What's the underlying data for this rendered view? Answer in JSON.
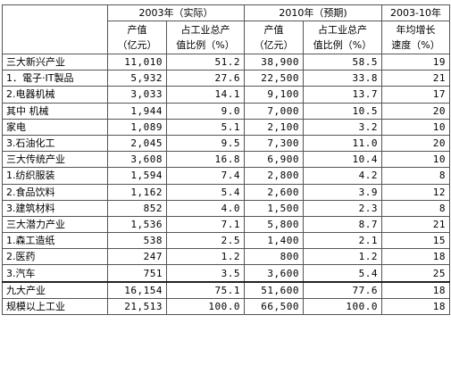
{
  "header": {
    "groups": [
      {
        "label": "2003年（实际）"
      },
      {
        "label": "2010年（预期)"
      },
      {
        "label": "2003-10年"
      }
    ],
    "columns": [
      [
        "产值",
        "（亿元）"
      ],
      [
        "占工业总产",
        "值比例（%）"
      ],
      [
        "产值",
        "（亿元）"
      ],
      [
        "占工业总产",
        "值比例（%）"
      ],
      [
        "年均增长",
        "速度（%）"
      ]
    ]
  },
  "rows": [
    {
      "label": "三大新兴产业",
      "indent": 0,
      "values": [
        "11,010",
        "51.2",
        "38,900",
        "58.5",
        "19"
      ]
    },
    {
      "label": "1．電子·IT製品",
      "indent": 1,
      "values": [
        "5,932",
        "27.6",
        "22,500",
        "33.8",
        "21"
      ]
    },
    {
      "label": "2.电器机械",
      "indent": 2,
      "values": [
        "3,033",
        "14.1",
        "9,100",
        "13.7",
        "17"
      ]
    },
    {
      "label": "其中  机械",
      "indent": 1,
      "values": [
        "1,944",
        "9.0",
        "7,000",
        "10.5",
        "20"
      ]
    },
    {
      "label": "家电",
      "indent": 3,
      "values": [
        "1,089",
        "5.1",
        "2,100",
        "3.2",
        "10"
      ]
    },
    {
      "label": "3.石油化工",
      "indent": 2,
      "values": [
        "2,045",
        "9.5",
        "7,300",
        "11.0",
        "20"
      ]
    },
    {
      "label": "三大传统产业",
      "indent": 0,
      "values": [
        "3,608",
        "16.8",
        "6,900",
        "10.4",
        "10"
      ]
    },
    {
      "label": "1.纺织服装",
      "indent": 1,
      "values": [
        "1,594",
        "7.4",
        "2,800",
        "4.2",
        "8"
      ]
    },
    {
      "label": "2.食品饮料",
      "indent": 1,
      "values": [
        "1,162",
        "5.4",
        "2,600",
        "3.9",
        "12"
      ]
    },
    {
      "label": "3.建筑材料",
      "indent": 1,
      "values": [
        "852",
        "4.0",
        "1,500",
        "2.3",
        "8"
      ]
    },
    {
      "label": "三大潜力产业",
      "indent": 0,
      "values": [
        "1,536",
        "7.1",
        "5,800",
        "8.7",
        "21"
      ]
    },
    {
      "label": "1.森工造纸",
      "indent": 1,
      "values": [
        "538",
        "2.5",
        "1,400",
        "2.1",
        "15"
      ]
    },
    {
      "label": "2.医药",
      "indent": 1,
      "values": [
        "247",
        "1.2",
        "800",
        "1.2",
        "18"
      ]
    },
    {
      "label": "3.汽车",
      "indent": 1,
      "values": [
        "751",
        "3.5",
        "3,600",
        "5.4",
        "25"
      ]
    },
    {
      "label": "九大产业",
      "indent": 0,
      "values": [
        "16,154",
        "75.1",
        "51,600",
        "77.6",
        "18"
      ],
      "group": true
    },
    {
      "label": "规模以上工业",
      "indent": 0,
      "values": [
        "21,513",
        "100.0",
        "66,500",
        "100.0",
        "18"
      ]
    }
  ]
}
